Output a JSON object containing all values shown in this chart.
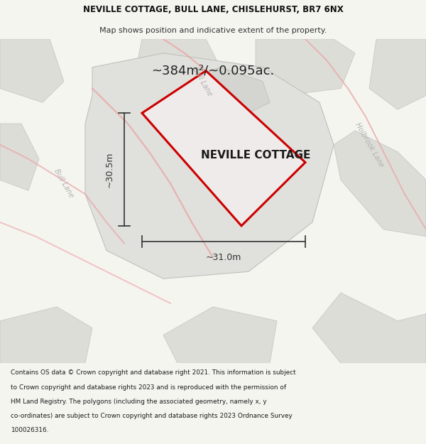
{
  "title_line1": "NEVILLE COTTAGE, BULL LANE, CHISLEHURST, BR7 6NX",
  "title_line2": "Map shows position and indicative extent of the property.",
  "area_text": "~384m²/~0.095ac.",
  "label": "NEVILLE COTTAGE",
  "dim_width": "~31.0m",
  "dim_height": "~30.5m",
  "footer_lines": [
    "Contains OS data © Crown copyright and database right 2021. This information is subject",
    "to Crown copyright and database rights 2023 and is reproduced with the permission of",
    "HM Land Registry. The polygons (including the associated geometry, namely x, y",
    "co-ordinates) are subject to Crown copyright and database rights 2023 Ordnance Survey",
    "100026316."
  ],
  "bg_color": "#f5f5f0",
  "map_bg": "#f0f0ec",
  "plot_outline_color": "#cc0000",
  "plot_fill_color": "#e8e4e4",
  "block_fill": "#ddddd8",
  "block_edge": "#c8c8c4",
  "road_pink": "#e8a8a8",
  "street_label_color": "#b0b0b0",
  "dim_line_color": "#333333",
  "text_color": "#222222",
  "footer_bg": "#f0f0ec"
}
